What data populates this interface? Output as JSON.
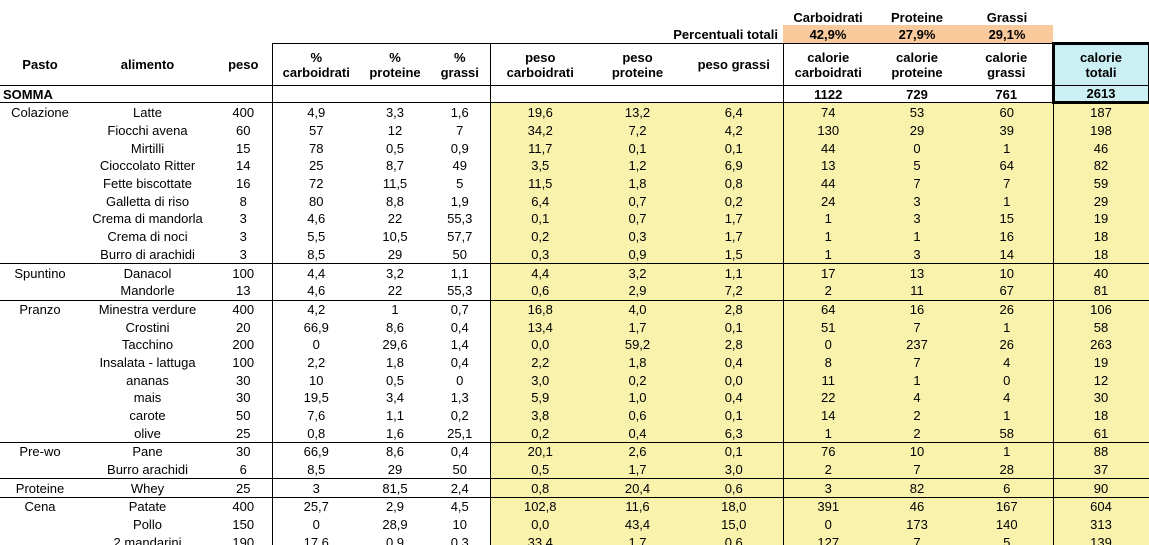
{
  "colors": {
    "yellow": "#F8F2AD",
    "orange": "#FACA9C",
    "blue": "#CBEFF2"
  },
  "top": {
    "macro_labels": [
      "Carboidrati",
      "Proteine",
      "Grassi"
    ],
    "percentuali_label": "Percentuali totali",
    "percent_values": [
      "42,9%",
      "27,9%",
      "29,1%"
    ]
  },
  "table": {
    "header_keys": [
      "pasto",
      "alimento",
      "peso",
      "pct-carboidrati",
      "pct-proteine",
      "pct-grassi",
      "peso-carboidrati",
      "peso-proteine",
      "peso-grassi",
      "calorie-carboidrati",
      "calorie-proteine",
      "calorie-grassi",
      "calorie-totali"
    ],
    "headers": [
      [
        "Pasto"
      ],
      [
        "alimento"
      ],
      [
        "peso"
      ],
      [
        "%",
        "carboidrati"
      ],
      [
        "%",
        "proteine"
      ],
      [
        "%",
        "grassi"
      ],
      [
        "peso",
        "carboidrati"
      ],
      [
        "peso",
        "proteine"
      ],
      [
        "peso grassi"
      ],
      [
        "calorie",
        "carboidrati"
      ],
      [
        "calorie",
        "proteine"
      ],
      [
        "calorie",
        "grassi"
      ],
      [
        "calorie",
        "totali"
      ]
    ],
    "somma": [
      "SOMMA",
      "",
      "",
      "",
      "",
      "",
      "",
      "",
      "",
      "1122",
      "729",
      "761",
      "2613"
    ],
    "rows": [
      [
        "Colazione",
        "Latte",
        "400",
        "4,9",
        "3,3",
        "1,6",
        "19,6",
        "13,2",
        "6,4",
        "74",
        "53",
        "60",
        "187"
      ],
      [
        "",
        "Fiocchi avena",
        "60",
        "57",
        "12",
        "7",
        "34,2",
        "7,2",
        "4,2",
        "130",
        "29",
        "39",
        "198"
      ],
      [
        "",
        "Mirtilli",
        "15",
        "78",
        "0,5",
        "0,9",
        "11,7",
        "0,1",
        "0,1",
        "44",
        "0",
        "1",
        "46"
      ],
      [
        "",
        "Cioccolato Ritter",
        "14",
        "25",
        "8,7",
        "49",
        "3,5",
        "1,2",
        "6,9",
        "13",
        "5",
        "64",
        "82"
      ],
      [
        "",
        "Fette biscottate",
        "16",
        "72",
        "11,5",
        "5",
        "11,5",
        "1,8",
        "0,8",
        "44",
        "7",
        "7",
        "59"
      ],
      [
        "",
        "Galletta di riso",
        "8",
        "80",
        "8,8",
        "1,9",
        "6,4",
        "0,7",
        "0,2",
        "24",
        "3",
        "1",
        "29"
      ],
      [
        "",
        "Crema di mandorla",
        "3",
        "4,6",
        "22",
        "55,3",
        "0,1",
        "0,7",
        "1,7",
        "1",
        "3",
        "15",
        "19"
      ],
      [
        "",
        "Crema di noci",
        "3",
        "5,5",
        "10,5",
        "57,7",
        "0,2",
        "0,3",
        "1,7",
        "1",
        "1",
        "16",
        "18"
      ],
      [
        "",
        "Burro di arachidi",
        "3",
        "8,5",
        "29",
        "50",
        "0,3",
        "0,9",
        "1,5",
        "1",
        "3",
        "14",
        "18"
      ],
      [
        "Spuntino",
        "Danacol",
        "100",
        "4,4",
        "3,2",
        "1,1",
        "4,4",
        "3,2",
        "1,1",
        "17",
        "13",
        "10",
        "40"
      ],
      [
        "",
        "Mandorle",
        "13",
        "4,6",
        "22",
        "55,3",
        "0,6",
        "2,9",
        "7,2",
        "2",
        "11",
        "67",
        "81"
      ],
      [
        "Pranzo",
        "Minestra verdure",
        "400",
        "4,2",
        "1",
        "0,7",
        "16,8",
        "4,0",
        "2,8",
        "64",
        "16",
        "26",
        "106"
      ],
      [
        "",
        "Crostini",
        "20",
        "66,9",
        "8,6",
        "0,4",
        "13,4",
        "1,7",
        "0,1",
        "51",
        "7",
        "1",
        "58"
      ],
      [
        "",
        "Tacchino",
        "200",
        "0",
        "29,6",
        "1,4",
        "0,0",
        "59,2",
        "2,8",
        "0",
        "237",
        "26",
        "263"
      ],
      [
        "",
        "Insalata - lattuga",
        "100",
        "2,2",
        "1,8",
        "0,4",
        "2,2",
        "1,8",
        "0,4",
        "8",
        "7",
        "4",
        "19"
      ],
      [
        "",
        "ananas",
        "30",
        "10",
        "0,5",
        "0",
        "3,0",
        "0,2",
        "0,0",
        "11",
        "1",
        "0",
        "12"
      ],
      [
        "",
        "mais",
        "30",
        "19,5",
        "3,4",
        "1,3",
        "5,9",
        "1,0",
        "0,4",
        "22",
        "4",
        "4",
        "30"
      ],
      [
        "",
        "carote",
        "50",
        "7,6",
        "1,1",
        "0,2",
        "3,8",
        "0,6",
        "0,1",
        "14",
        "2",
        "1",
        "18"
      ],
      [
        "",
        "olive",
        "25",
        "0,8",
        "1,6",
        "25,1",
        "0,2",
        "0,4",
        "6,3",
        "1",
        "2",
        "58",
        "61"
      ],
      [
        "Pre-wo",
        "Pane",
        "30",
        "66,9",
        "8,6",
        "0,4",
        "20,1",
        "2,6",
        "0,1",
        "76",
        "10",
        "1",
        "88"
      ],
      [
        "",
        "Burro arachidi",
        "6",
        "8,5",
        "29",
        "50",
        "0,5",
        "1,7",
        "3,0",
        "2",
        "7",
        "28",
        "37"
      ],
      [
        "Proteine",
        "Whey",
        "25",
        "3",
        "81,5",
        "2,4",
        "0,8",
        "20,4",
        "0,6",
        "3",
        "82",
        "6",
        "90"
      ],
      [
        "Cena",
        "Patate",
        "400",
        "25,7",
        "2,9",
        "4,5",
        "102,8",
        "11,6",
        "18,0",
        "391",
        "46",
        "167",
        "604"
      ],
      [
        "",
        "Pollo",
        "150",
        "0",
        "28,9",
        "10",
        "0,0",
        "43,4",
        "15,0",
        "0",
        "173",
        "140",
        "313"
      ],
      [
        "",
        "2 mandarini",
        "190",
        "17,6",
        "0,9",
        "0,3",
        "33,4",
        "1,7",
        "0,6",
        "127",
        "7",
        "5",
        "139"
      ]
    ],
    "group_end_rows": [
      8,
      10,
      18,
      20,
      21,
      24
    ]
  }
}
